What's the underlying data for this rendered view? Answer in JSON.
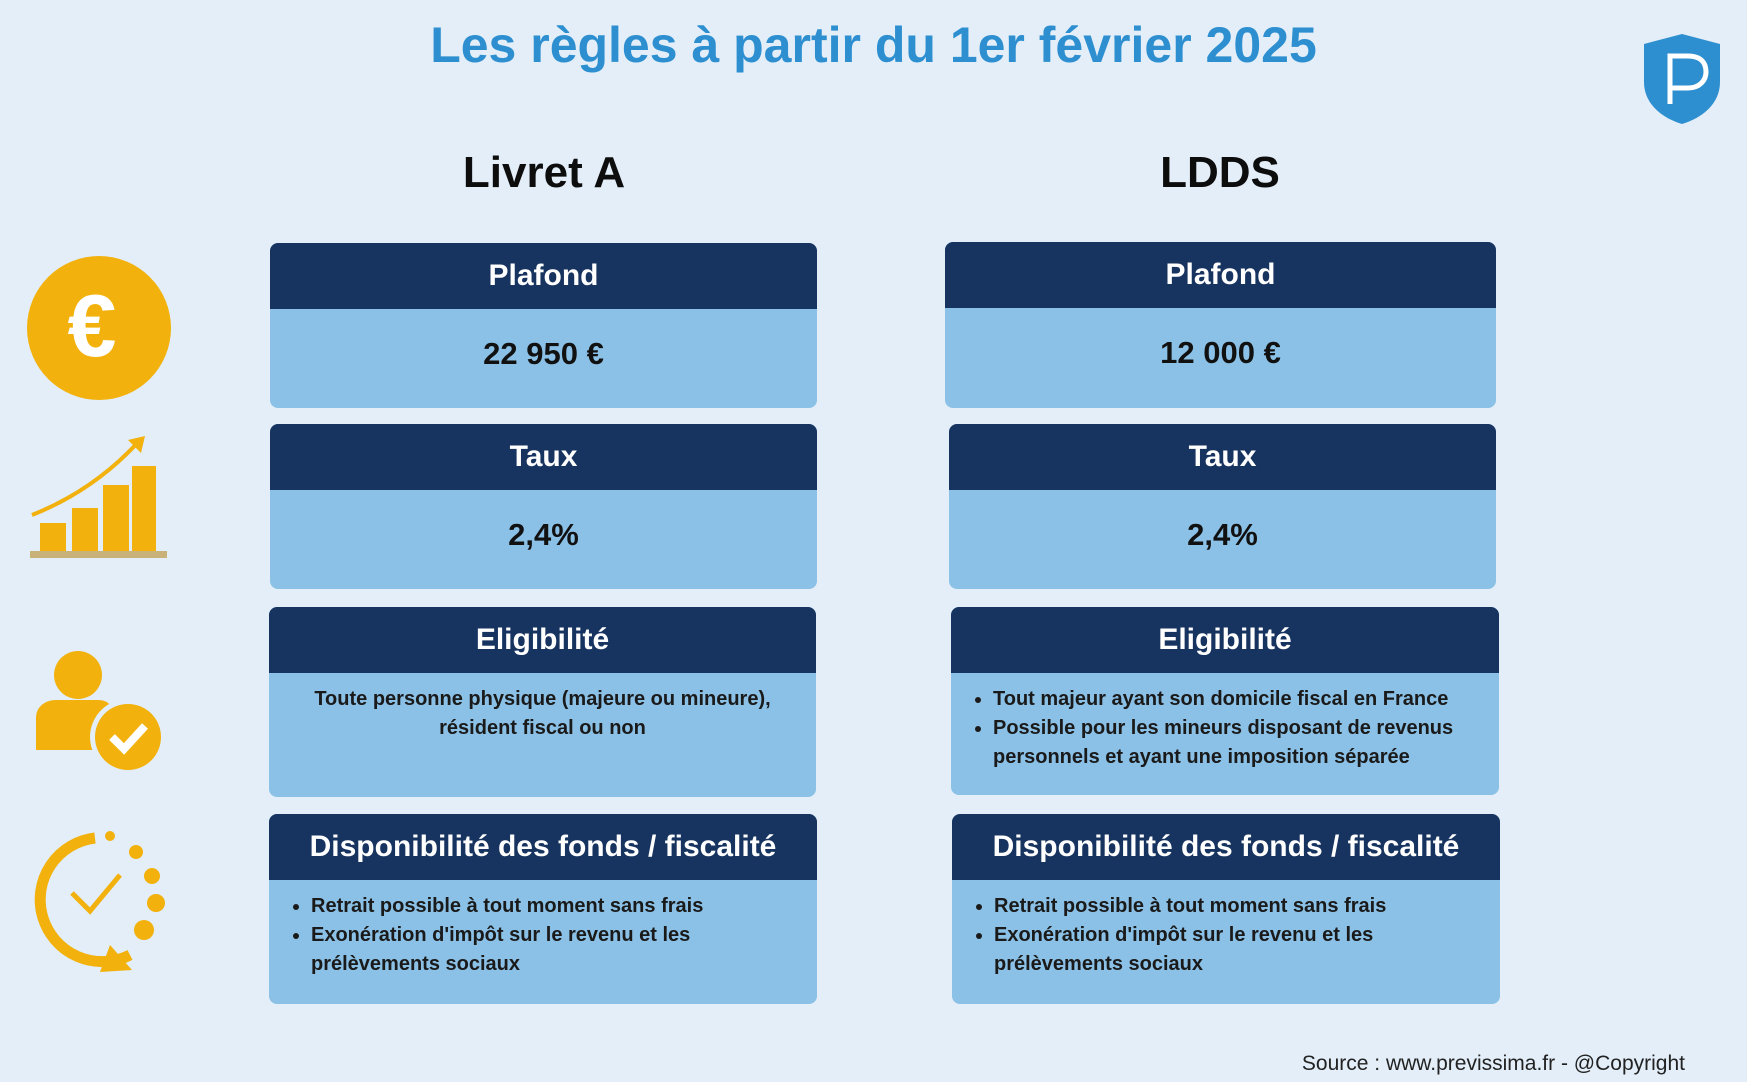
{
  "title": "Les règles à partir du 1er février 2025",
  "columns": [
    {
      "heading": "Livret A",
      "cards": [
        {
          "header": "Plafond",
          "body": "22 950 €"
        },
        {
          "header": "Taux",
          "body": "2,4%"
        },
        {
          "header": "Eligibilité",
          "body": "Toute personne physique (majeure ou mineure), résident fiscal ou non"
        },
        {
          "header": "Disponibilité des fonds / fiscalité",
          "items": [
            "Retrait possible à tout moment sans frais",
            "Exonération d'impôt sur le revenu et les prélèvements sociaux"
          ]
        }
      ]
    },
    {
      "heading": "LDDS",
      "cards": [
        {
          "header": "Plafond",
          "body": "12 000 €"
        },
        {
          "header": "Taux",
          "body": "2,4%"
        },
        {
          "header": "Eligibilité",
          "items": [
            "Tout majeur ayant son domicile fiscal en France",
            "Possible pour les mineurs disposant de revenus personnels et ayant une imposition séparée"
          ]
        },
        {
          "header": "Disponibilité des fonds / fiscalité",
          "items": [
            "Retrait possible à tout moment sans frais",
            "Exonération d'impôt sur le revenu et les prélèvements sociaux"
          ]
        }
      ]
    }
  ],
  "source": "Source : www.previssima.fr - @Copyright"
}
